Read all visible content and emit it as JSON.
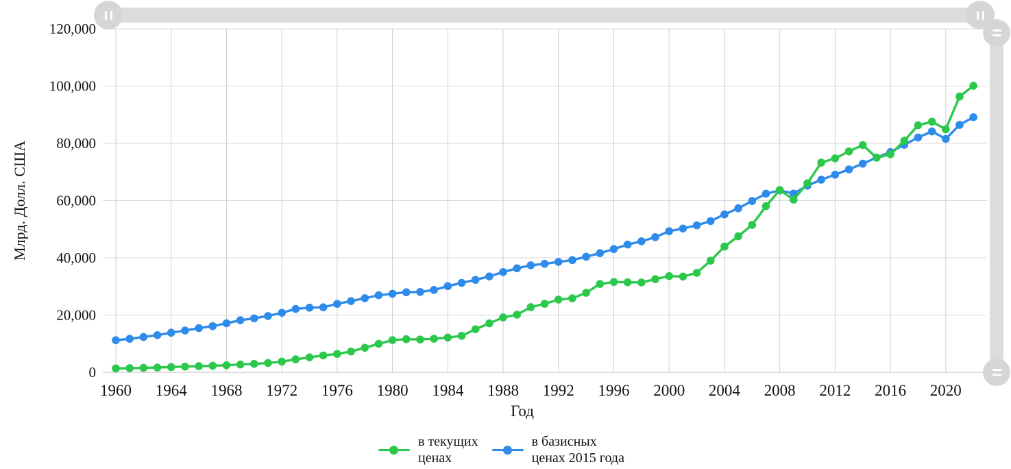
{
  "chart_data": {
    "type": "line",
    "title": "",
    "xlabel": "Год",
    "ylabel": "Млрд. Долл. США",
    "xlim": [
      1960,
      2022
    ],
    "ylim": [
      0,
      120000
    ],
    "grid": true,
    "legend_position": "bottom",
    "x_ticks": [
      1960,
      1964,
      1968,
      1972,
      1976,
      1980,
      1984,
      1988,
      1992,
      1996,
      2000,
      2004,
      2008,
      2012,
      2016,
      2020
    ],
    "y_ticks": [
      {
        "value": 0,
        "label": "0"
      },
      {
        "value": 20000,
        "label": "20,000"
      },
      {
        "value": 40000,
        "label": "40,000"
      },
      {
        "value": 60000,
        "label": "60,000"
      },
      {
        "value": 80000,
        "label": "80,000"
      },
      {
        "value": 100000,
        "label": "100,000"
      },
      {
        "value": 120000,
        "label": "120,000"
      }
    ],
    "x": [
      1960,
      1961,
      1962,
      1963,
      1964,
      1965,
      1966,
      1967,
      1968,
      1969,
      1970,
      1971,
      1972,
      1973,
      1974,
      1975,
      1976,
      1977,
      1978,
      1979,
      1980,
      1981,
      1982,
      1983,
      1984,
      1985,
      1986,
      1987,
      1988,
      1989,
      1990,
      1991,
      1992,
      1993,
      1994,
      1995,
      1996,
      1997,
      1998,
      1999,
      2000,
      2001,
      2002,
      2003,
      2004,
      2005,
      2006,
      2007,
      2008,
      2009,
      2010,
      2011,
      2012,
      2013,
      2014,
      2015,
      2016,
      2017,
      2018,
      2019,
      2020,
      2021,
      2022
    ],
    "series": [
      {
        "id": "current-prices",
        "name": "в текущих\nценах",
        "color": "#2cc84c",
        "values": [
          1370,
          1450,
          1560,
          1670,
          1830,
          1990,
          2160,
          2300,
          2480,
          2730,
          2960,
          3250,
          3730,
          4530,
          5230,
          5900,
          6420,
          7270,
          8580,
          9950,
          11260,
          11570,
          11470,
          11730,
          12150,
          12740,
          15060,
          17120,
          19180,
          20140,
          22760,
          23930,
          25420,
          25860,
          27780,
          30870,
          31550,
          31450,
          31390,
          32550,
          33620,
          33450,
          34740,
          39010,
          43930,
          47520,
          51500,
          58040,
          63680,
          60330,
          66040,
          73260,
          74750,
          77180,
          79390,
          74960,
          76160,
          80890,
          86300,
          87550,
          84910,
          96350,
          100100
        ]
      },
      {
        "id": "constant-2015-prices",
        "name": "в базисных\nценах 2015 года",
        "color": "#2e8bea",
        "values": [
          11220,
          11700,
          12340,
          12980,
          13840,
          14600,
          15430,
          16140,
          17140,
          18190,
          18860,
          19670,
          20790,
          22140,
          22580,
          22720,
          23920,
          24880,
          25880,
          26940,
          27450,
          27970,
          28080,
          28780,
          30100,
          31240,
          32300,
          33490,
          35030,
          36330,
          37380,
          37900,
          38580,
          39200,
          40380,
          41630,
          43050,
          44640,
          45760,
          47220,
          49300,
          50240,
          51350,
          52840,
          55160,
          57310,
          59830,
          62400,
          63530,
          62450,
          65200,
          67290,
          69040,
          70900,
          72890,
          75000,
          76950,
          79490,
          82030,
          84160,
          81550,
          86440,
          89120
        ]
      }
    ],
    "colors": {
      "v_gridline": "#cfcfcf",
      "h_gridline": "#d9d9d9",
      "axis_line": "#c9c9c9",
      "tick_text": "#111111"
    }
  },
  "scrollbars": {
    "track_color": "#dcdcdc",
    "grip_color": "#d6d6d6",
    "grip_icon_color": "#ffffff"
  }
}
